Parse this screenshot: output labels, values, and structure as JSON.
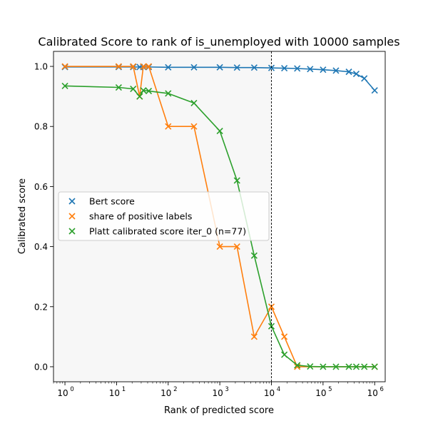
{
  "chart_data": {
    "type": "line",
    "title": "Calibrated Score to rank of is_unemployed with 10000 samples",
    "xlabel": "Rank of predicted score",
    "ylabel": "Calibrated score",
    "xscale": "log",
    "xlim": [
      0.6,
      1600000
    ],
    "ylim": [
      -0.05,
      1.05
    ],
    "x_ticks": [
      {
        "value": 1,
        "base": "10",
        "exp": "0"
      },
      {
        "value": 10,
        "base": "10",
        "exp": "1"
      },
      {
        "value": 100,
        "base": "10",
        "exp": "2"
      },
      {
        "value": 1000,
        "base": "10",
        "exp": "3"
      },
      {
        "value": 10000,
        "base": "10",
        "exp": "4"
      },
      {
        "value": 100000,
        "base": "10",
        "exp": "5"
      },
      {
        "value": 1000000,
        "base": "10",
        "exp": "6"
      }
    ],
    "y_ticks": [
      {
        "value": 0.0,
        "label": "0.0"
      },
      {
        "value": 0.2,
        "label": "0.2"
      },
      {
        "value": 0.4,
        "label": "0.4"
      },
      {
        "value": 0.6,
        "label": "0.6"
      },
      {
        "value": 0.8,
        "label": "0.8"
      },
      {
        "value": 1.0,
        "label": "1.0"
      }
    ],
    "shaded_region": {
      "x_from": 0.6,
      "x_to": 10000,
      "color": "#f7f7f7"
    },
    "vline": {
      "x": 10000,
      "style": "dashed",
      "color": "#000000"
    },
    "legend_position": "center-left",
    "series": [
      {
        "name": "Bert score",
        "color": "#1f77b4",
        "x": [
          1,
          11,
          21,
          28,
          33,
          42,
          100,
          316,
          1000,
          2154,
          4642,
          10000,
          17783,
          31623,
          56234,
          100000,
          177828,
          316228,
          440000,
          630000,
          1000000
        ],
        "y": [
          0.998,
          0.998,
          0.998,
          0.998,
          0.998,
          0.998,
          0.997,
          0.997,
          0.997,
          0.996,
          0.996,
          0.995,
          0.994,
          0.993,
          0.991,
          0.989,
          0.986,
          0.982,
          0.975,
          0.96,
          0.92
        ]
      },
      {
        "name": "share of positive labels",
        "color": "#ff7f0e",
        "x": [
          1,
          11,
          21,
          28,
          33,
          42,
          100,
          316,
          1000,
          2154,
          4642,
          10000,
          17783,
          31623,
          1000000
        ],
        "y": [
          1.0,
          1.0,
          1.0,
          0.9,
          1.0,
          1.0,
          0.8,
          0.8,
          0.4,
          0.4,
          0.1,
          0.2,
          0.1,
          0.0,
          0.0
        ]
      },
      {
        "name": "Platt calibrated score iter_0 (n=77)",
        "color": "#2ca02c",
        "x": [
          1,
          11,
          21,
          28,
          33,
          42,
          100,
          316,
          1000,
          2154,
          4642,
          10000,
          17783,
          31623,
          56234,
          100000,
          177828,
          316228,
          440000,
          630000,
          1000000
        ],
        "y": [
          0.935,
          0.93,
          0.925,
          0.9,
          0.92,
          0.918,
          0.91,
          0.878,
          0.785,
          0.62,
          0.37,
          0.135,
          0.04,
          0.005,
          0.001,
          0.0,
          0.0,
          0.0,
          0.0,
          0.0,
          0.0
        ]
      }
    ]
  }
}
